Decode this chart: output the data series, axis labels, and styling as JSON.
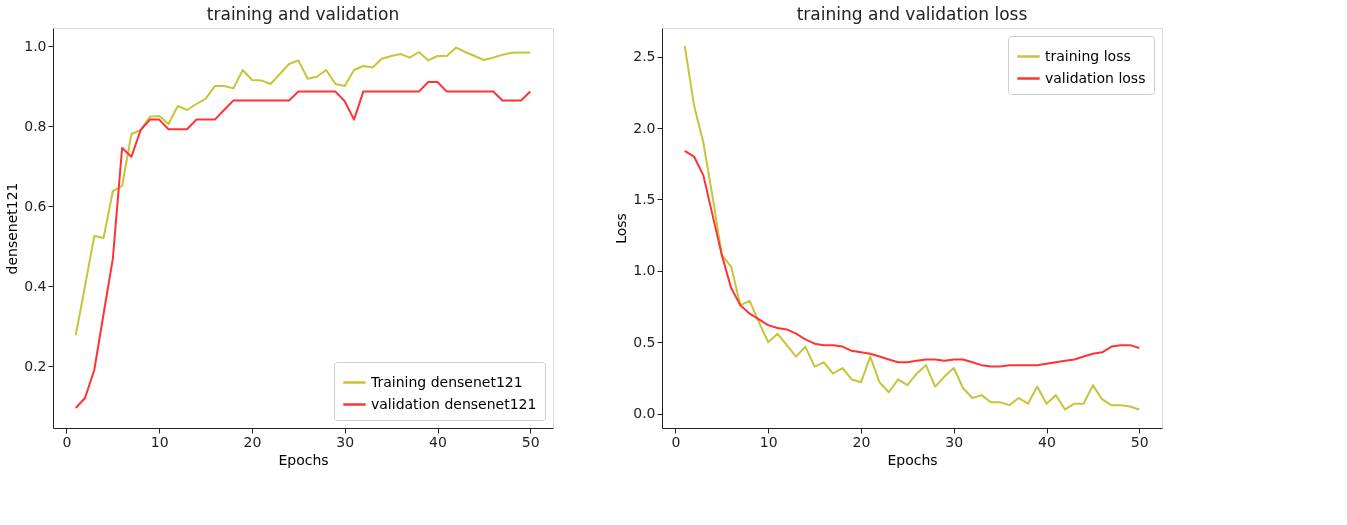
{
  "chart_data": [
    {
      "type": "line",
      "title": "training and validation",
      "xlabel": "Epochs",
      "ylabel": "densenet121",
      "x": [
        1,
        2,
        3,
        4,
        5,
        6,
        7,
        8,
        9,
        10,
        11,
        12,
        13,
        14,
        15,
        16,
        17,
        18,
        19,
        20,
        21,
        22,
        23,
        24,
        25,
        26,
        27,
        28,
        29,
        30,
        31,
        32,
        33,
        34,
        35,
        36,
        37,
        38,
        39,
        40,
        41,
        42,
        43,
        44,
        45,
        46,
        47,
        48,
        49,
        50
      ],
      "series": [
        {
          "name": "Training densenet121",
          "color": "#c5c53a",
          "values": [
            0.277,
            0.4,
            0.525,
            0.52,
            0.637,
            0.65,
            0.78,
            0.79,
            0.823,
            0.825,
            0.805,
            0.85,
            0.84,
            0.855,
            0.868,
            0.9,
            0.9,
            0.894,
            0.94,
            0.915,
            0.914,
            0.905,
            0.93,
            0.955,
            0.964,
            0.918,
            0.923,
            0.94,
            0.905,
            0.9,
            0.94,
            0.95,
            0.946,
            0.968,
            0.975,
            0.98,
            0.971,
            0.985,
            0.964,
            0.975,
            0.975,
            0.996,
            0.985,
            0.975,
            0.965,
            0.971,
            0.978,
            0.983,
            0.984,
            0.984
          ]
        },
        {
          "name": "validation densenet121",
          "color": "#ff3333",
          "values": [
            0.095,
            0.12,
            0.19,
            0.33,
            0.468,
            0.745,
            0.723,
            0.79,
            0.816,
            0.816,
            0.792,
            0.792,
            0.792,
            0.816,
            0.816,
            0.816,
            0.84,
            0.864,
            0.864,
            0.864,
            0.864,
            0.864,
            0.864,
            0.864,
            0.886,
            0.886,
            0.886,
            0.886,
            0.886,
            0.862,
            0.816,
            0.886,
            0.886,
            0.886,
            0.886,
            0.886,
            0.886,
            0.886,
            0.91,
            0.91,
            0.886,
            0.886,
            0.886,
            0.886,
            0.886,
            0.886,
            0.864,
            0.864,
            0.864,
            0.886
          ]
        }
      ],
      "xlim": [
        -1.45,
        52.45
      ],
      "xticks": [
        0,
        10,
        20,
        30,
        40,
        50
      ],
      "ylim": [
        0.045,
        1.045
      ],
      "yticks": [
        {
          "value": 0.2,
          "label": "0.2"
        },
        {
          "value": 0.4,
          "label": "0.4"
        },
        {
          "value": 0.6,
          "label": "0.6"
        },
        {
          "value": 0.8,
          "label": "0.8"
        },
        {
          "value": 1,
          "label": "1.0"
        }
      ],
      "grid": false,
      "legend": "bottom right",
      "marker": "none",
      "line_style": "solid"
    },
    {
      "type": "line",
      "title": "training and validation loss",
      "xlabel": "Epochs",
      "ylabel": "Loss",
      "x": [
        1,
        2,
        3,
        4,
        5,
        6,
        7,
        8,
        9,
        10,
        11,
        12,
        13,
        14,
        15,
        16,
        17,
        18,
        19,
        20,
        21,
        22,
        23,
        24,
        25,
        26,
        27,
        28,
        29,
        30,
        31,
        32,
        33,
        34,
        35,
        36,
        37,
        38,
        39,
        40,
        41,
        42,
        43,
        44,
        45,
        46,
        47,
        48,
        49,
        50
      ],
      "series": [
        {
          "name": "training loss",
          "color": "#c5c53a",
          "values": [
            2.575,
            2.16,
            1.9,
            1.52,
            1.11,
            1.03,
            0.76,
            0.79,
            0.64,
            0.5,
            0.56,
            0.48,
            0.4,
            0.47,
            0.33,
            0.36,
            0.28,
            0.32,
            0.24,
            0.22,
            0.4,
            0.22,
            0.15,
            0.24,
            0.2,
            0.28,
            0.34,
            0.19,
            0.26,
            0.32,
            0.18,
            0.11,
            0.13,
            0.08,
            0.08,
            0.06,
            0.11,
            0.07,
            0.19,
            0.07,
            0.13,
            0.03,
            0.07,
            0.07,
            0.2,
            0.1,
            0.06,
            0.06,
            0.05,
            0.03
          ]
        },
        {
          "name": "validation loss",
          "color": "#ff3333",
          "values": [
            1.84,
            1.8,
            1.67,
            1.39,
            1.11,
            0.88,
            0.76,
            0.7,
            0.66,
            0.62,
            0.6,
            0.59,
            0.56,
            0.52,
            0.49,
            0.48,
            0.48,
            0.47,
            0.44,
            0.43,
            0.42,
            0.4,
            0.38,
            0.36,
            0.36,
            0.37,
            0.38,
            0.38,
            0.37,
            0.38,
            0.38,
            0.36,
            0.34,
            0.33,
            0.33,
            0.34,
            0.34,
            0.34,
            0.34,
            0.35,
            0.36,
            0.37,
            0.38,
            0.4,
            0.42,
            0.43,
            0.47,
            0.48,
            0.48,
            0.46
          ]
        }
      ],
      "xlim": [
        -1.45,
        52.45
      ],
      "xticks": [
        0,
        10,
        20,
        30,
        40,
        50
      ],
      "ylim": [
        -0.1,
        2.7
      ],
      "yticks": [
        {
          "value": 0,
          "label": "0.0"
        },
        {
          "value": 0.5,
          "label": "0.5"
        },
        {
          "value": 1,
          "label": "1.0"
        },
        {
          "value": 1.5,
          "label": "1.5"
        },
        {
          "value": 2,
          "label": "2.0"
        },
        {
          "value": 2.5,
          "label": "2.5"
        }
      ],
      "grid": false,
      "legend": "top right",
      "marker": "none",
      "line_style": "solid"
    }
  ]
}
